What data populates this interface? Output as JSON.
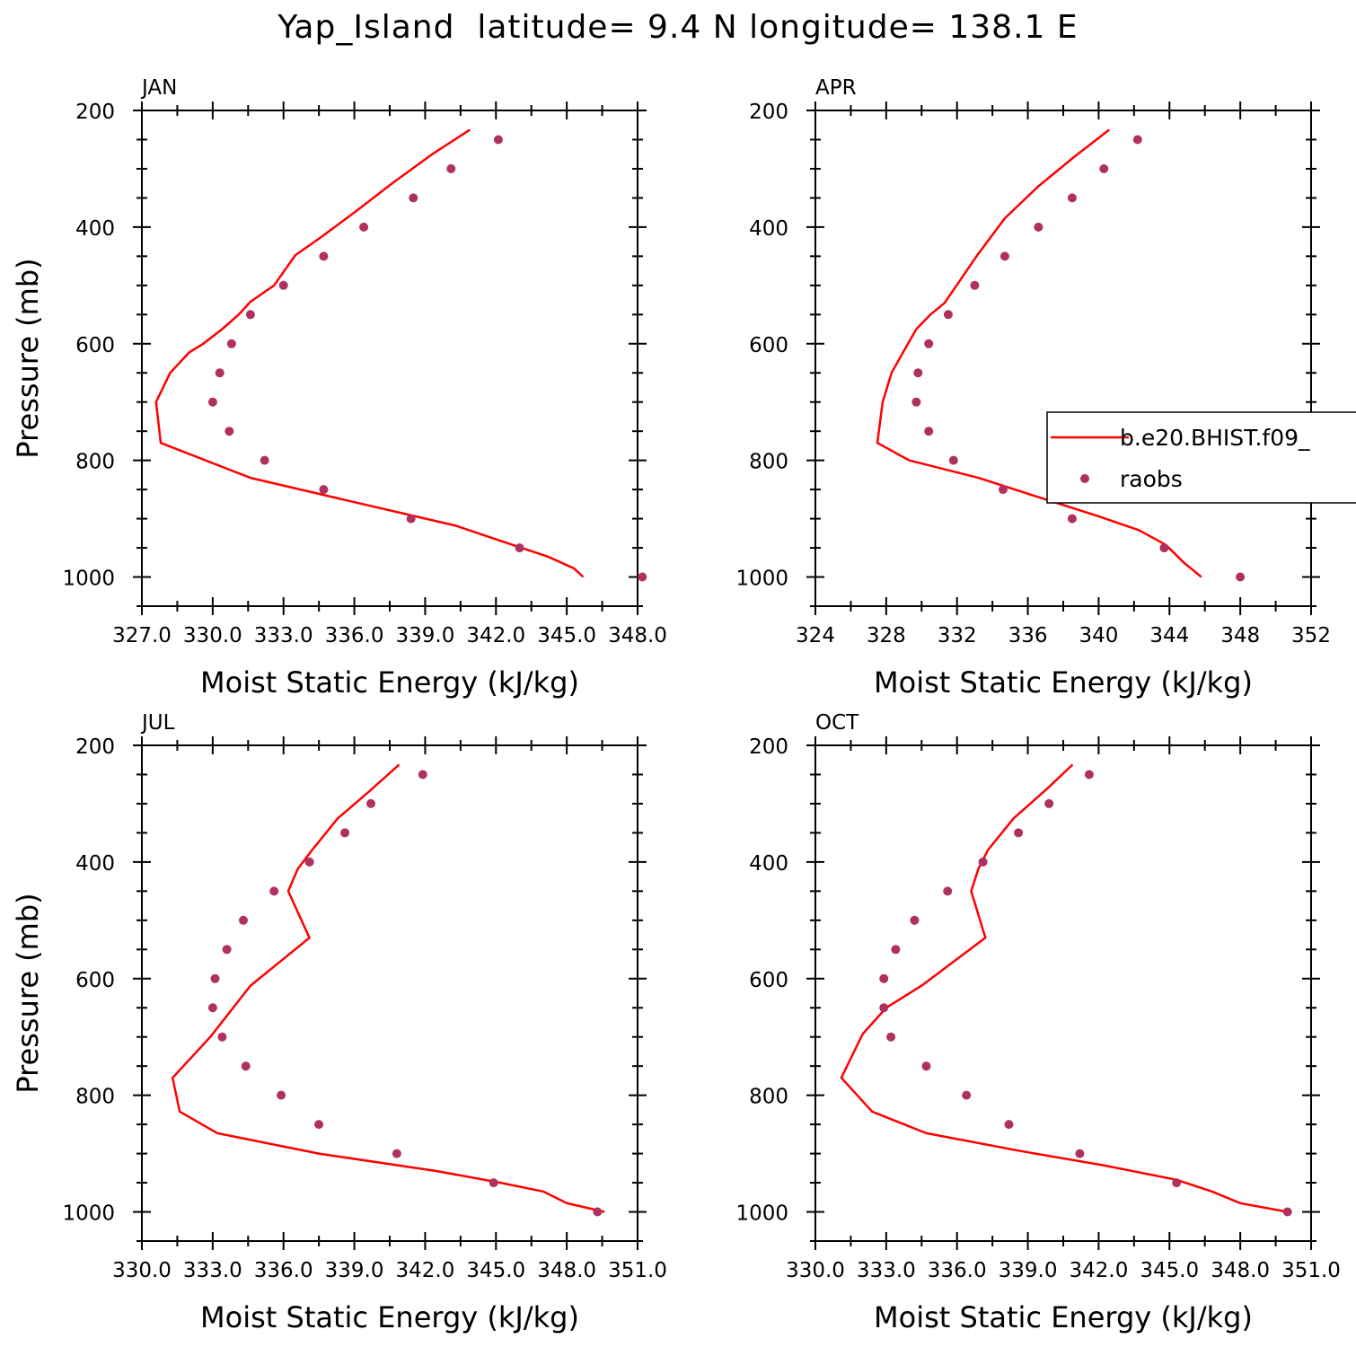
{
  "title": "Yap_Island  latitude= 9.4 N longitude= 138.1 E",
  "colors": {
    "model": "#ff0000",
    "obs": "#b03060",
    "axis": "#000000"
  },
  "legend": {
    "model_label": "b.e20.BHIST.f09_",
    "obs_label": "raobs",
    "placement": "top-right panel (APR), right"
  },
  "chart_data": [
    {
      "type": "line",
      "panel": "JAN",
      "title": "JAN",
      "xlabel": "Moist Static Energy (kJ/kg)",
      "ylabel": "Pressure (mb)",
      "xlim": [
        327.0,
        348.0
      ],
      "ylim": [
        200,
        1050
      ],
      "y_inverted": true,
      "xticks": [
        327.0,
        330.0,
        333.0,
        336.0,
        339.0,
        342.0,
        345.0,
        348.0
      ],
      "xtick_labels": [
        "327.0",
        "330.0",
        "333.0",
        "336.0",
        "339.0",
        "342.0",
        "345.0",
        "348.0"
      ],
      "yticks": [
        200,
        400,
        600,
        800,
        1000
      ],
      "ytick_labels": [
        "200",
        "400",
        "600",
        "800",
        "1000"
      ],
      "series": [
        {
          "name": "b.e20.BHIST.f09_",
          "style": "line",
          "x": [
            340.9,
            339.3,
            337.6,
            336.0,
            334.5,
            333.5,
            332.6,
            331.6,
            331.1,
            330.4,
            329.6,
            329.0,
            328.2,
            327.6,
            327.8,
            331.6,
            335.3,
            340.3,
            342.5,
            344.2,
            345.3,
            345.7
          ],
          "y": [
            233,
            275,
            325,
            375,
            420,
            448,
            500,
            528,
            550,
            575,
            600,
            615,
            650,
            700,
            770,
            830,
            865,
            912,
            942,
            965,
            985,
            1000
          ]
        },
        {
          "name": "raobs",
          "style": "scatter",
          "x": [
            342.1,
            340.1,
            338.5,
            336.4,
            334.7,
            333.0,
            331.6,
            330.8,
            330.3,
            330.0,
            330.7,
            332.2,
            334.7,
            338.4,
            343.0,
            348.2
          ],
          "y": [
            250,
            300,
            350,
            400,
            450,
            500,
            550,
            600,
            650,
            700,
            750,
            800,
            850,
            900,
            950,
            1000
          ]
        }
      ]
    },
    {
      "type": "line",
      "panel": "APR",
      "title": "APR",
      "xlabel": "Moist Static Energy (kJ/kg)",
      "ylabel": "",
      "xlim": [
        324,
        352
      ],
      "ylim": [
        200,
        1050
      ],
      "y_inverted": true,
      "xticks": [
        324,
        328,
        332,
        336,
        340,
        344,
        348,
        352
      ],
      "xtick_labels": [
        "324",
        "328",
        "332",
        "336",
        "340",
        "344",
        "348",
        "352"
      ],
      "yticks": [
        200,
        400,
        600,
        800,
        1000
      ],
      "ytick_labels": [
        "200",
        "400",
        "600",
        "800",
        "1000"
      ],
      "series": [
        {
          "name": "b.e20.BHIST.f09_",
          "style": "line",
          "x": [
            340.6,
            338.6,
            336.6,
            334.7,
            333.1,
            332.2,
            331.3,
            330.5,
            329.7,
            329.0,
            328.3,
            327.8,
            327.5,
            329.3,
            333.2,
            336.5,
            339.9,
            342.3,
            343.8,
            344.8,
            345.8
          ],
          "y": [
            233,
            280,
            330,
            385,
            450,
            490,
            530,
            550,
            575,
            612,
            650,
            700,
            770,
            800,
            830,
            862,
            895,
            920,
            945,
            975,
            1000
          ]
        },
        {
          "name": "raobs",
          "style": "scatter",
          "x": [
            342.2,
            340.3,
            338.5,
            336.6,
            334.7,
            333.0,
            331.5,
            330.4,
            329.8,
            329.7,
            330.4,
            331.8,
            334.6,
            338.5,
            343.7,
            348.0
          ],
          "y": [
            250,
            300,
            350,
            400,
            450,
            500,
            550,
            600,
            650,
            700,
            750,
            800,
            850,
            900,
            950,
            1000
          ]
        }
      ]
    },
    {
      "type": "line",
      "panel": "JUL",
      "title": "JUL",
      "xlabel": "Moist Static Energy (kJ/kg)",
      "ylabel": "Pressure (mb)",
      "xlim": [
        330.0,
        351.0
      ],
      "ylim": [
        200,
        1050
      ],
      "y_inverted": true,
      "xticks": [
        330.0,
        333.0,
        336.0,
        339.0,
        342.0,
        345.0,
        348.0,
        351.0
      ],
      "xtick_labels": [
        "330.0",
        "333.0",
        "336.0",
        "339.0",
        "342.0",
        "345.0",
        "348.0",
        "351.0"
      ],
      "yticks": [
        200,
        400,
        600,
        800,
        1000
      ],
      "ytick_labels": [
        "200",
        "400",
        "600",
        "800",
        "1000"
      ],
      "series": [
        {
          "name": "b.e20.BHIST.f09_",
          "style": "line",
          "x": [
            340.9,
            339.6,
            338.3,
            337.2,
            336.6,
            336.2,
            337.1,
            334.6,
            332.9,
            331.3,
            331.6,
            333.2,
            337.5,
            342.5,
            345.2,
            347.0,
            348.0,
            349.6
          ],
          "y": [
            233,
            280,
            325,
            380,
            412,
            450,
            530,
            612,
            700,
            770,
            828,
            865,
            900,
            930,
            950,
            965,
            985,
            1000
          ]
        },
        {
          "name": "raobs",
          "style": "scatter",
          "x": [
            341.9,
            339.7,
            338.6,
            337.1,
            335.6,
            334.3,
            333.6,
            333.1,
            333.0,
            333.4,
            334.4,
            335.9,
            337.5,
            340.8,
            344.9,
            349.3
          ],
          "y": [
            250,
            300,
            350,
            400,
            450,
            500,
            550,
            600,
            650,
            700,
            750,
            800,
            850,
            900,
            950,
            1000
          ]
        }
      ]
    },
    {
      "type": "line",
      "panel": "OCT",
      "title": "OCT",
      "xlabel": "Moist Static Energy (kJ/kg)",
      "ylabel": "",
      "xlim": [
        330.0,
        351.0
      ],
      "ylim": [
        200,
        1050
      ],
      "y_inverted": true,
      "xticks": [
        330.0,
        333.0,
        336.0,
        339.0,
        342.0,
        345.0,
        348.0,
        351.0
      ],
      "xtick_labels": [
        "330.0",
        "333.0",
        "336.0",
        "339.0",
        "342.0",
        "345.0",
        "348.0",
        "351.0"
      ],
      "yticks": [
        200,
        400,
        600,
        800,
        1000
      ],
      "ytick_labels": [
        "200",
        "400",
        "600",
        "800",
        "1000"
      ],
      "series": [
        {
          "name": "b.e20.BHIST.f09_",
          "style": "line",
          "x": [
            340.9,
            339.8,
            338.4,
            337.3,
            336.9,
            336.6,
            337.2,
            334.5,
            333.0,
            332.0,
            331.1,
            332.4,
            334.7,
            338.6,
            342.2,
            345.3,
            346.8,
            348.0,
            350.0
          ],
          "y": [
            233,
            275,
            325,
            380,
            412,
            450,
            530,
            612,
            650,
            695,
            770,
            828,
            865,
            895,
            920,
            945,
            965,
            985,
            1000
          ]
        },
        {
          "name": "raobs",
          "style": "scatter",
          "x": [
            341.6,
            339.9,
            338.6,
            337.1,
            335.6,
            334.2,
            333.4,
            332.9,
            332.9,
            333.2,
            334.7,
            336.4,
            338.2,
            341.2,
            345.3,
            350.0
          ],
          "y": [
            250,
            300,
            350,
            400,
            450,
            500,
            550,
            600,
            650,
            700,
            750,
            800,
            850,
            900,
            950,
            1000
          ]
        }
      ]
    }
  ]
}
